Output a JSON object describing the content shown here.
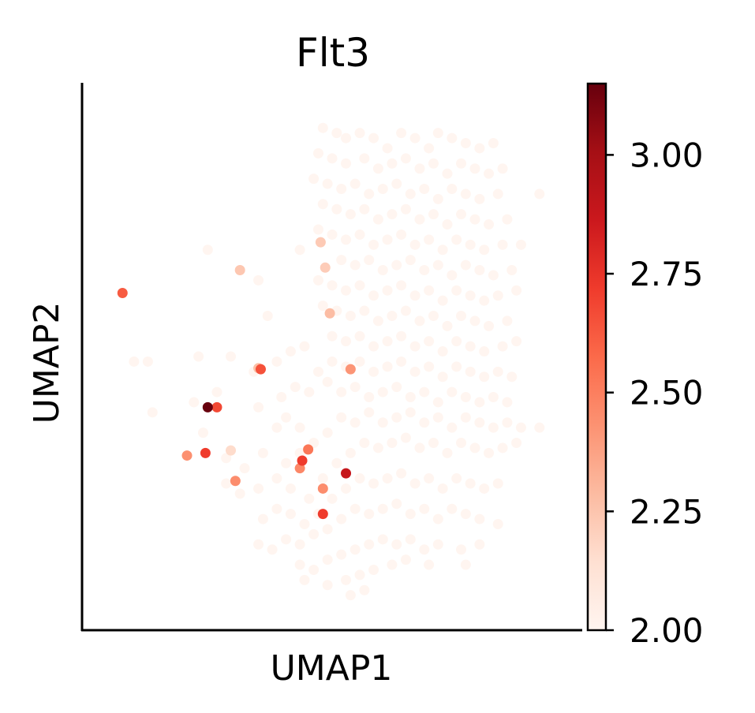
{
  "chart_data": {
    "type": "scatter",
    "title": "Flt3",
    "xlabel": "UMAP1",
    "ylabel": "UMAP2",
    "xlim": [
      0,
      100
    ],
    "ylim": [
      0,
      100
    ],
    "xticks_visible": false,
    "yticks_visible": false,
    "grid": false,
    "colormap": {
      "name": "Reds",
      "stops": [
        "#fff5f0",
        "#fee0d2",
        "#fcbba1",
        "#fc9272",
        "#fb6a4a",
        "#ef3b2c",
        "#cb181d",
        "#a50f15",
        "#67000d"
      ],
      "range": [
        2.0,
        3.15
      ],
      "ticks": [
        2.0,
        2.25,
        2.5,
        2.75,
        3.0
      ],
      "tick_labels": [
        "2.00",
        "2.25",
        "2.50",
        "2.75",
        "3.00"
      ]
    },
    "background_points": [
      [
        48,
        95
      ],
      [
        51,
        94
      ],
      [
        53,
        93
      ],
      [
        56,
        94
      ],
      [
        59,
        93
      ],
      [
        62,
        91
      ],
      [
        65,
        94
      ],
      [
        68,
        93
      ],
      [
        71,
        91
      ],
      [
        73,
        94
      ],
      [
        76,
        93
      ],
      [
        79,
        92
      ],
      [
        82,
        91
      ],
      [
        85,
        92
      ],
      [
        47,
        90
      ],
      [
        50,
        89
      ],
      [
        53,
        88
      ],
      [
        57,
        89
      ],
      [
        60,
        87
      ],
      [
        63,
        88
      ],
      [
        66,
        89
      ],
      [
        69,
        87
      ],
      [
        72,
        88
      ],
      [
        75,
        86
      ],
      [
        78,
        88
      ],
      [
        81,
        87
      ],
      [
        84,
        86
      ],
      [
        87,
        87
      ],
      [
        46,
        85
      ],
      [
        49,
        84
      ],
      [
        52,
        83
      ],
      [
        55,
        84
      ],
      [
        58,
        82
      ],
      [
        61,
        83
      ],
      [
        64,
        84
      ],
      [
        67,
        82
      ],
      [
        70,
        83
      ],
      [
        73,
        81
      ],
      [
        76,
        83
      ],
      [
        79,
        82
      ],
      [
        82,
        81
      ],
      [
        86,
        82
      ],
      [
        95,
        82
      ],
      [
        48,
        80
      ],
      [
        51,
        79
      ],
      [
        54,
        78
      ],
      [
        57,
        79
      ],
      [
        60,
        77
      ],
      [
        63,
        78
      ],
      [
        66,
        79
      ],
      [
        69,
        77
      ],
      [
        72,
        78
      ],
      [
        75,
        76
      ],
      [
        78,
        78
      ],
      [
        81,
        77
      ],
      [
        84,
        76
      ],
      [
        88,
        77
      ],
      [
        47,
        75
      ],
      [
        50,
        74
      ],
      [
        53,
        73
      ],
      [
        56,
        74
      ],
      [
        59,
        72
      ],
      [
        62,
        73
      ],
      [
        65,
        74
      ],
      [
        68,
        72
      ],
      [
        71,
        73
      ],
      [
        74,
        71
      ],
      [
        77,
        73
      ],
      [
        80,
        72
      ],
      [
        83,
        71
      ],
      [
        87,
        72
      ],
      [
        91,
        72
      ],
      [
        23,
        71
      ],
      [
        43,
        71
      ],
      [
        52,
        69
      ],
      [
        55,
        68
      ],
      [
        58,
        69
      ],
      [
        61,
        67
      ],
      [
        64,
        68
      ],
      [
        67,
        69
      ],
      [
        70,
        67
      ],
      [
        73,
        68
      ],
      [
        76,
        66
      ],
      [
        79,
        68
      ],
      [
        82,
        67
      ],
      [
        85,
        66
      ],
      [
        89,
        67
      ],
      [
        34,
        65
      ],
      [
        47,
        65
      ],
      [
        50,
        64
      ],
      [
        53,
        63
      ],
      [
        56,
        64
      ],
      [
        59,
        62
      ],
      [
        62,
        63
      ],
      [
        65,
        64
      ],
      [
        68,
        62
      ],
      [
        71,
        63
      ],
      [
        74,
        61
      ],
      [
        77,
        63
      ],
      [
        80,
        62
      ],
      [
        83,
        61
      ],
      [
        86,
        62
      ],
      [
        90,
        63
      ],
      [
        36,
        58
      ],
      [
        48,
        60
      ],
      [
        51,
        59
      ],
      [
        54,
        58
      ],
      [
        57,
        59
      ],
      [
        60,
        57
      ],
      [
        63,
        58
      ],
      [
        66,
        59
      ],
      [
        69,
        57
      ],
      [
        72,
        58
      ],
      [
        75,
        56
      ],
      [
        78,
        58
      ],
      [
        81,
        57
      ],
      [
        84,
        56
      ],
      [
        88,
        57
      ],
      [
        7,
        49
      ],
      [
        10,
        49
      ],
      [
        21,
        50
      ],
      [
        28,
        50
      ],
      [
        33,
        47
      ],
      [
        38,
        49
      ],
      [
        41,
        51
      ],
      [
        44,
        52
      ],
      [
        50,
        54
      ],
      [
        53,
        53
      ],
      [
        56,
        54
      ],
      [
        59,
        52
      ],
      [
        62,
        53
      ],
      [
        65,
        54
      ],
      [
        68,
        52
      ],
      [
        71,
        53
      ],
      [
        74,
        51
      ],
      [
        77,
        53
      ],
      [
        80,
        52
      ],
      [
        83,
        51
      ],
      [
        87,
        52
      ],
      [
        90,
        53
      ],
      [
        11,
        39
      ],
      [
        20,
        41
      ],
      [
        25,
        43
      ],
      [
        34,
        40
      ],
      [
        39,
        42
      ],
      [
        42,
        44
      ],
      [
        45,
        43
      ],
      [
        47,
        47
      ],
      [
        50,
        49
      ],
      [
        53,
        48
      ],
      [
        56,
        49
      ],
      [
        59,
        47
      ],
      [
        62,
        48
      ],
      [
        65,
        49
      ],
      [
        68,
        47
      ],
      [
        71,
        48
      ],
      [
        74,
        46
      ],
      [
        77,
        48
      ],
      [
        80,
        47
      ],
      [
        83,
        46
      ],
      [
        86,
        47
      ],
      [
        89,
        46
      ],
      [
        22,
        35
      ],
      [
        38,
        36
      ],
      [
        40,
        38
      ],
      [
        43,
        36
      ],
      [
        49,
        45
      ],
      [
        52,
        43
      ],
      [
        55,
        44
      ],
      [
        58,
        42
      ],
      [
        61,
        43
      ],
      [
        64,
        44
      ],
      [
        67,
        42
      ],
      [
        70,
        43
      ],
      [
        73,
        41
      ],
      [
        76,
        43
      ],
      [
        79,
        42
      ],
      [
        82,
        41
      ],
      [
        85,
        42
      ],
      [
        88,
        41
      ],
      [
        27,
        30
      ],
      [
        31,
        28
      ],
      [
        35,
        31
      ],
      [
        40,
        29
      ],
      [
        43,
        31
      ],
      [
        46,
        33
      ],
      [
        49,
        35
      ],
      [
        52,
        38
      ],
      [
        55,
        37
      ],
      [
        58,
        39
      ],
      [
        61,
        37
      ],
      [
        64,
        38
      ],
      [
        67,
        39
      ],
      [
        70,
        37
      ],
      [
        73,
        38
      ],
      [
        76,
        36
      ],
      [
        79,
        38
      ],
      [
        82,
        37
      ],
      [
        85,
        36
      ],
      [
        88,
        37
      ],
      [
        91,
        36
      ],
      [
        95,
        36
      ],
      [
        27,
        25
      ],
      [
        30,
        23
      ],
      [
        34,
        24
      ],
      [
        38,
        26
      ],
      [
        41,
        24
      ],
      [
        45,
        22
      ],
      [
        48,
        26
      ],
      [
        51,
        29
      ],
      [
        54,
        31
      ],
      [
        57,
        33
      ],
      [
        60,
        32
      ],
      [
        63,
        33
      ],
      [
        66,
        34
      ],
      [
        69,
        32
      ],
      [
        72,
        33
      ],
      [
        75,
        31
      ],
      [
        78,
        33
      ],
      [
        81,
        32
      ],
      [
        84,
        31
      ],
      [
        87,
        32
      ],
      [
        90,
        33
      ],
      [
        35,
        18
      ],
      [
        38,
        20
      ],
      [
        41,
        19
      ],
      [
        44,
        17
      ],
      [
        47,
        19
      ],
      [
        50,
        22
      ],
      [
        53,
        24
      ],
      [
        56,
        26
      ],
      [
        59,
        25
      ],
      [
        62,
        26
      ],
      [
        65,
        27
      ],
      [
        68,
        25
      ],
      [
        71,
        26
      ],
      [
        74,
        24
      ],
      [
        77,
        26
      ],
      [
        80,
        25
      ],
      [
        83,
        24
      ],
      [
        86,
        25
      ],
      [
        34,
        13
      ],
      [
        37,
        12
      ],
      [
        40,
        14
      ],
      [
        43,
        13
      ],
      [
        46,
        15
      ],
      [
        49,
        16
      ],
      [
        52,
        18
      ],
      [
        55,
        20
      ],
      [
        58,
        19
      ],
      [
        61,
        20
      ],
      [
        64,
        21
      ],
      [
        67,
        19
      ],
      [
        70,
        20
      ],
      [
        73,
        18
      ],
      [
        76,
        20
      ],
      [
        79,
        19
      ],
      [
        82,
        18
      ],
      [
        86,
        17
      ],
      [
        43,
        9
      ],
      [
        46,
        8
      ],
      [
        49,
        10
      ],
      [
        52,
        11
      ],
      [
        55,
        12
      ],
      [
        58,
        13
      ],
      [
        61,
        14
      ],
      [
        64,
        13
      ],
      [
        67,
        14
      ],
      [
        70,
        12
      ],
      [
        73,
        13
      ],
      [
        78,
        12
      ],
      [
        82,
        13
      ],
      [
        44,
        6
      ],
      [
        49,
        5
      ],
      [
        53,
        6
      ],
      [
        56,
        7
      ],
      [
        59,
        8
      ],
      [
        63,
        9
      ],
      [
        66,
        10
      ],
      [
        71,
        9
      ],
      [
        79,
        9
      ],
      [
        57,
        4
      ],
      [
        54,
        3
      ]
    ],
    "points": [
      {
        "x": 4.5,
        "y": 62.5,
        "value": 2.62
      },
      {
        "x": 30.0,
        "y": 67.0,
        "value": 2.24
      },
      {
        "x": 48.5,
        "y": 67.5,
        "value": 2.22
      },
      {
        "x": 49.5,
        "y": 58.5,
        "value": 2.28
      },
      {
        "x": 47.5,
        "y": 72.5,
        "value": 2.23
      },
      {
        "x": 34.5,
        "y": 47.5,
        "value": 2.65
      },
      {
        "x": 54.0,
        "y": 47.5,
        "value": 2.42
      },
      {
        "x": 34.0,
        "y": 47.7,
        "value": 2.27
      },
      {
        "x": 23.0,
        "y": 40.0,
        "value": 3.15
      },
      {
        "x": 25.0,
        "y": 40.0,
        "value": 2.68
      },
      {
        "x": 28.0,
        "y": 31.5,
        "value": 2.16
      },
      {
        "x": 18.5,
        "y": 30.5,
        "value": 2.44
      },
      {
        "x": 22.5,
        "y": 31.0,
        "value": 2.72
      },
      {
        "x": 29.0,
        "y": 25.5,
        "value": 2.45
      },
      {
        "x": 44.8,
        "y": 31.7,
        "value": 2.53
      },
      {
        "x": 43.5,
        "y": 29.5,
        "value": 2.72
      },
      {
        "x": 43.0,
        "y": 28.0,
        "value": 2.47
      },
      {
        "x": 53.0,
        "y": 27.0,
        "value": 2.88
      },
      {
        "x": 48.0,
        "y": 24.0,
        "value": 2.45
      },
      {
        "x": 48.0,
        "y": 19.0,
        "value": 2.72
      }
    ]
  }
}
